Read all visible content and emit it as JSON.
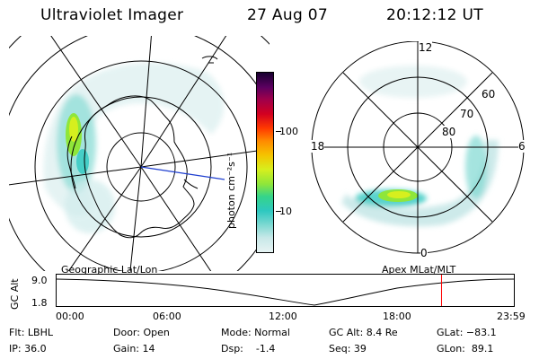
{
  "header": {
    "title": "Ultraviolet Imager",
    "date": "27 Aug 07",
    "time": "20:12:12 UT"
  },
  "colorbar": {
    "unit_label": "photon cm⁻²s⁻¹",
    "tick_100": "100",
    "tick_10": "10",
    "colors": [
      "#e6f3f3",
      "#c8e8e8",
      "#7fd9d2",
      "#2ec8c0",
      "#35d48a",
      "#8fe63a",
      "#d6ef1e",
      "#f5c400",
      "#ff8a00",
      "#ff3a00",
      "#d30020",
      "#a0004a",
      "#5a0060",
      "#180030"
    ]
  },
  "left_map": {
    "caption": "Geographic Lat/Lon"
  },
  "right_map": {
    "caption": "Apex MLat/MLT",
    "mlt_top": "12",
    "mlt_left": "18",
    "mlt_right": "6",
    "mlt_bottom": "0",
    "lat_60": "60",
    "lat_70": "70",
    "lat_80": "80"
  },
  "altitude_plot": {
    "ylabel": "GC Alt",
    "y_max": "9.0",
    "y_min": "1.8",
    "time_ticks": [
      "00:00",
      "06:00",
      "12:00",
      "18:00",
      "23:59"
    ],
    "current_time_fraction": 0.8418,
    "marker_color": "#ff0000"
  },
  "info": {
    "flt": "Flt: LBHL",
    "ip": "IP: 36.0",
    "door": "Door: Open",
    "gain": "Gain: 14",
    "mode": "Mode: Normal",
    "dsp": "Dsp:    -1.4",
    "gc_alt": "GC Alt: 8.4 Re",
    "seq": "Seq: 39",
    "glat": "GLat: −83.1",
    "glon": "GLon:  89.1"
  }
}
